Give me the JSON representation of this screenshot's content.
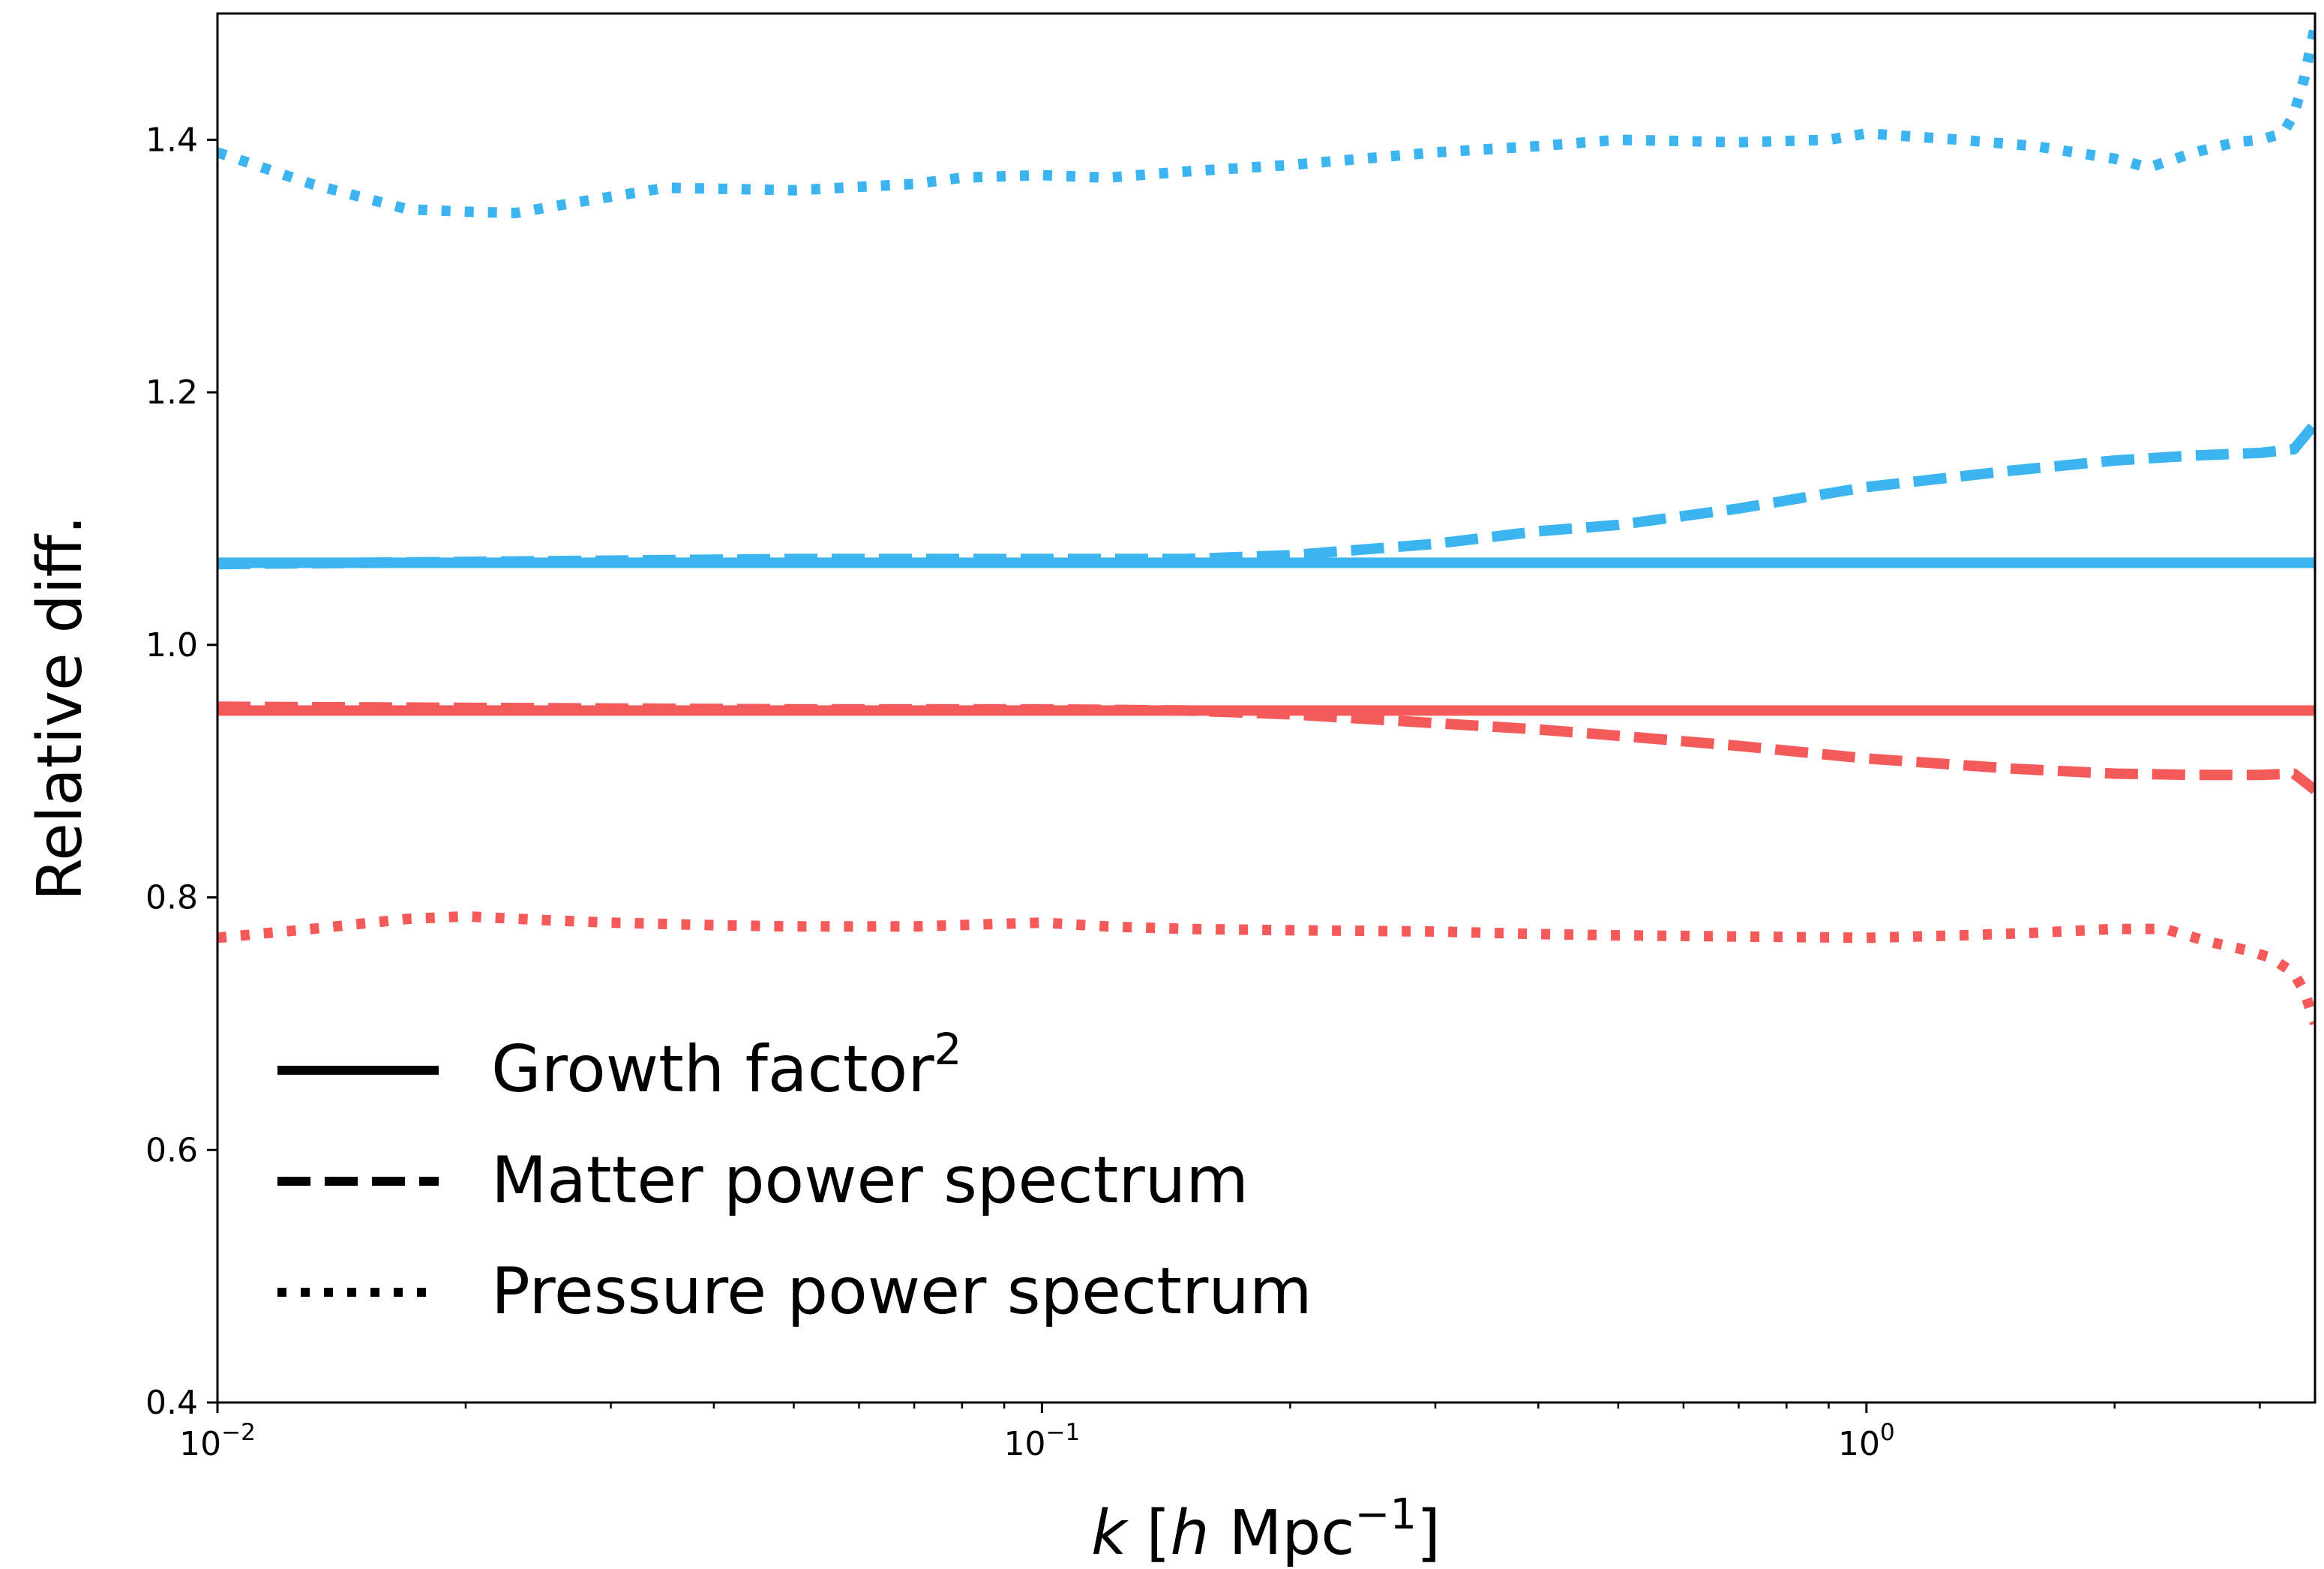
{
  "chart_data": {
    "type": "line",
    "title": "",
    "xlabel": {
      "italic": "k",
      "rest": " [",
      "italic2": "h",
      "unit": " Mpc",
      "exp": "−1",
      "close": "]"
    },
    "ylabel": "Relative diff.",
    "xscale": "log",
    "xlim": [
      0.01,
      3.5
    ],
    "ylim": [
      0.4,
      1.5
    ],
    "grid": false,
    "legend_position": "lower-left",
    "x_ticks": [
      {
        "value": 0.01,
        "base": "10",
        "exp": "−2"
      },
      {
        "value": 0.1,
        "base": "10",
        "exp": "−1"
      },
      {
        "value": 1,
        "base": "10",
        "exp": "0"
      }
    ],
    "y_ticks": [
      {
        "value": 0.4,
        "label": "0.4"
      },
      {
        "value": 0.6,
        "label": "0.6"
      },
      {
        "value": 0.8,
        "label": "0.8"
      },
      {
        "value": 1.0,
        "label": "1.0"
      },
      {
        "value": 1.2,
        "label": "1.2"
      },
      {
        "value": 1.4,
        "label": "1.4"
      }
    ],
    "legend": [
      {
        "label": "Growth factor",
        "sup": "2",
        "style": "solid"
      },
      {
        "label": "Matter power spectrum",
        "sup": "",
        "style": "dashed"
      },
      {
        "label": "Pressure power spectrum",
        "sup": "",
        "style": "dotted"
      }
    ],
    "colors": {
      "blue": "#3cb4f0",
      "red": "#f55a5a"
    },
    "series": [
      {
        "color": "blue",
        "style": "solid",
        "x": [
          0.01,
          3.5
        ],
        "y": [
          1.065,
          1.065
        ]
      },
      {
        "color": "blue",
        "style": "dashed",
        "x": [
          0.01,
          0.05,
          0.1,
          0.15,
          0.2,
          0.3,
          0.4,
          0.5,
          0.7,
          1.0,
          1.5,
          2.0,
          2.5,
          3.0,
          3.3,
          3.5
        ],
        "y": [
          1.064,
          1.068,
          1.068,
          1.068,
          1.071,
          1.08,
          1.09,
          1.095,
          1.108,
          1.125,
          1.138,
          1.146,
          1.15,
          1.152,
          1.155,
          1.175
        ]
      },
      {
        "color": "blue",
        "style": "dotted",
        "x": [
          0.01,
          0.013,
          0.017,
          0.02,
          0.023,
          0.027,
          0.035,
          0.05,
          0.07,
          0.08,
          0.1,
          0.12,
          0.15,
          0.2,
          0.3,
          0.4,
          0.5,
          0.7,
          0.9,
          1.0,
          1.3,
          1.6,
          2.0,
          2.2,
          2.5,
          2.8,
          3.0,
          3.2,
          3.3,
          3.4,
          3.5
        ],
        "y": [
          1.39,
          1.365,
          1.345,
          1.343,
          1.342,
          1.35,
          1.362,
          1.36,
          1.365,
          1.37,
          1.372,
          1.37,
          1.375,
          1.38,
          1.39,
          1.395,
          1.4,
          1.398,
          1.4,
          1.405,
          1.4,
          1.395,
          1.385,
          1.378,
          1.39,
          1.398,
          1.4,
          1.405,
          1.42,
          1.45,
          1.49
        ]
      },
      {
        "color": "red",
        "style": "solid",
        "x": [
          0.01,
          3.5
        ],
        "y": [
          0.948,
          0.948
        ]
      },
      {
        "color": "red",
        "style": "dashed",
        "x": [
          0.01,
          0.05,
          0.1,
          0.15,
          0.2,
          0.3,
          0.4,
          0.5,
          0.7,
          1.0,
          1.5,
          2.0,
          2.5,
          3.0,
          3.3,
          3.5
        ],
        "y": [
          0.951,
          0.949,
          0.949,
          0.948,
          0.945,
          0.938,
          0.933,
          0.928,
          0.92,
          0.91,
          0.902,
          0.898,
          0.897,
          0.897,
          0.898,
          0.885
        ]
      },
      {
        "color": "red",
        "style": "dotted",
        "x": [
          0.01,
          0.013,
          0.017,
          0.02,
          0.025,
          0.03,
          0.04,
          0.05,
          0.07,
          0.1,
          0.12,
          0.15,
          0.2,
          0.3,
          0.4,
          0.5,
          0.7,
          1.0,
          1.3,
          1.6,
          2.0,
          2.3,
          2.6,
          2.9,
          3.1,
          3.3,
          3.4,
          3.5
        ],
        "y": [
          0.768,
          0.775,
          0.783,
          0.785,
          0.782,
          0.78,
          0.778,
          0.777,
          0.777,
          0.78,
          0.777,
          0.775,
          0.774,
          0.773,
          0.771,
          0.77,
          0.769,
          0.768,
          0.77,
          0.772,
          0.775,
          0.775,
          0.765,
          0.758,
          0.752,
          0.74,
          0.725,
          0.7
        ]
      }
    ]
  }
}
